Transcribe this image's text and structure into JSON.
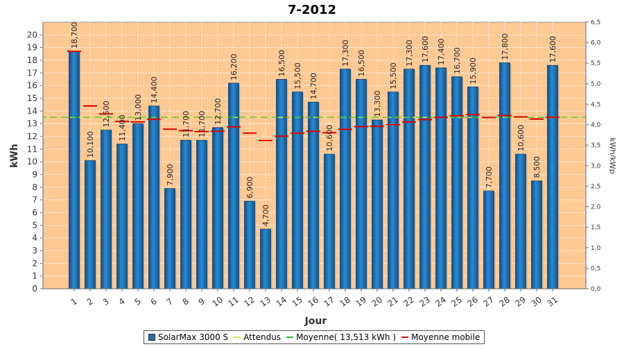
{
  "chart_data": {
    "type": "bar",
    "title": "7-2012",
    "xlabel": "Jour",
    "ylabel": "kWh",
    "y2label": "kWh/kWp",
    "ylim": [
      0,
      21
    ],
    "y2lim": [
      0,
      6.5
    ],
    "yticks": [
      "0",
      "1",
      "2",
      "3",
      "4",
      "5",
      "6",
      "7",
      "8",
      "9",
      "10",
      "11",
      "12",
      "13",
      "14",
      "15",
      "16",
      "17",
      "18",
      "19",
      "20"
    ],
    "y2ticks": [
      "0,0",
      "0,5",
      "1,0",
      "1,5",
      "2,0",
      "2,5",
      "3,0",
      "3,5",
      "4,0",
      "4,5",
      "5,0",
      "5,5",
      "6,0",
      "6,5"
    ],
    "categories": [
      "1",
      "2",
      "3",
      "4",
      "5",
      "6",
      "7",
      "8",
      "9",
      "10",
      "11",
      "12",
      "13",
      "14",
      "15",
      "16",
      "17",
      "18",
      "19",
      "20",
      "21",
      "22",
      "23",
      "24",
      "25",
      "26",
      "27",
      "28",
      "29",
      "30",
      "31"
    ],
    "series": [
      {
        "name": "SolarMax 3000 S",
        "kind": "bar",
        "color": "#1f6fb0",
        "values": [
          18.7,
          10.1,
          12.5,
          11.4,
          13.0,
          14.4,
          7.9,
          11.7,
          11.7,
          12.7,
          16.2,
          6.9,
          4.7,
          16.5,
          15.5,
          14.7,
          10.6,
          17.3,
          16.5,
          13.3,
          15.5,
          17.3,
          17.6,
          17.4,
          16.7,
          15.9,
          7.7,
          17.8,
          10.6,
          8.5,
          17.6
        ],
        "labels": [
          "18,700",
          "10,100",
          "12,500",
          "11,400",
          "13,000",
          "14,400",
          "7,900",
          "11,700",
          "11,700",
          "12,700",
          "16,200",
          "6,900",
          "4,700",
          "16,500",
          "15,500",
          "14,700",
          "10,600",
          "17,300",
          "16,500",
          "13,300",
          "15,500",
          "17,300",
          "17,600",
          "17,400",
          "16,700",
          "15,900",
          "7,700",
          "17,800",
          "10,600",
          "8,500",
          "17,600"
        ]
      },
      {
        "name": "Attendus",
        "kind": "line",
        "color": "#d8e84a",
        "value": 13.5
      },
      {
        "name": "Moyenne( 13,513 kWh )",
        "kind": "line",
        "color": "#22bb22",
        "value": 13.513
      },
      {
        "name": "Moyenne mobile",
        "kind": "marker",
        "color": "#dd0000",
        "values": [
          18.7,
          14.4,
          13.77,
          13.18,
          13.14,
          13.35,
          12.57,
          12.46,
          12.38,
          12.41,
          12.75,
          12.26,
          11.68,
          12.02,
          12.25,
          12.4,
          12.29,
          12.56,
          12.77,
          12.8,
          12.93,
          13.13,
          13.33,
          13.5,
          13.63,
          13.72,
          13.5,
          13.65,
          13.54,
          13.37,
          13.51
        ]
      }
    ],
    "grid": true,
    "legend_position": "bottom"
  },
  "legend": {
    "item1": "SolarMax 3000 S",
    "item2": "Attendus",
    "item3": "Moyenne( 13,513 kWh )",
    "item4": "Moyenne mobile"
  }
}
